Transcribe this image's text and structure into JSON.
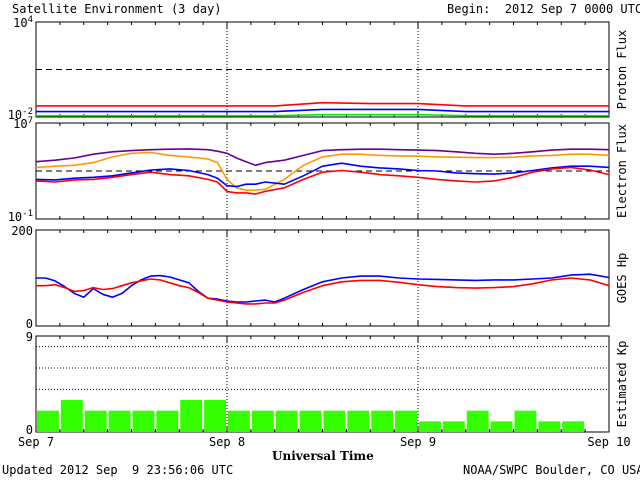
{
  "header": {
    "title": "Satellite Environment (3 day)",
    "begin": "Begin:  2012 Sep 7 0000 UTC"
  },
  "footer": {
    "updated": "Updated 2012 Sep  9 23:56:06 UTC",
    "credit": "NOAA/SWPC Boulder, CO USA"
  },
  "colors": {
    "red": "#ff0000",
    "blue": "#0000ff",
    "green": "#00ee00",
    "purple": "#660099",
    "orange": "#ff9900",
    "bar": "#33ff00"
  },
  "chart_data": [
    {
      "type": "line",
      "ylabel": "Proton Flux",
      "scale": "log",
      "ylim": [
        0.01,
        10000
      ],
      "yticks": [
        {
          "v": 10000,
          "base": "10",
          "exp": "4"
        },
        {
          "v": 0.01,
          "base": "10",
          "exp": "-2"
        }
      ],
      "threshold": 10,
      "x": [
        0,
        0.25,
        0.5,
        0.75,
        1,
        1.25,
        1.5,
        1.75,
        2,
        2.25,
        2.5,
        2.75,
        3
      ],
      "series": [
        {
          "color": "red",
          "values": [
            0.05,
            0.05,
            0.05,
            0.05,
            0.05,
            0.05,
            0.08,
            0.07,
            0.07,
            0.05,
            0.05,
            0.05,
            0.05
          ]
        },
        {
          "color": "blue",
          "values": [
            0.022,
            0.022,
            0.022,
            0.022,
            0.022,
            0.022,
            0.03,
            0.03,
            0.03,
            0.022,
            0.022,
            0.022,
            0.022
          ]
        },
        {
          "color": "green",
          "values": [
            0.012,
            0.012,
            0.012,
            0.012,
            0.012,
            0.012,
            0.014,
            0.014,
            0.014,
            0.012,
            0.012,
            0.012,
            0.012
          ]
        }
      ]
    },
    {
      "type": "line",
      "ylabel": "Electron Flux",
      "scale": "log",
      "ylim": [
        0.1,
        10000000
      ],
      "yticks": [
        {
          "v": 10000000,
          "base": "10",
          "exp": "7"
        },
        {
          "v": 0.1,
          "base": "10",
          "exp": "-1"
        }
      ],
      "threshold": 1000,
      "x": [
        0,
        0.1,
        0.2,
        0.3,
        0.4,
        0.5,
        0.6,
        0.7,
        0.8,
        0.9,
        0.95,
        1.0,
        1.05,
        1.1,
        1.15,
        1.2,
        1.3,
        1.4,
        1.5,
        1.6,
        1.7,
        1.8,
        1.9,
        2.0,
        2.1,
        2.2,
        2.3,
        2.4,
        2.5,
        2.6,
        2.7,
        2.8,
        2.9,
        3.0
      ],
      "series": [
        {
          "color": "purple",
          "values": [
            6000,
            8000,
            12000,
            25000,
            40000,
            50000,
            60000,
            65000,
            70000,
            60000,
            45000,
            30000,
            12000,
            6000,
            3000,
            5000,
            8000,
            20000,
            50000,
            60000,
            65000,
            65000,
            60000,
            55000,
            50000,
            40000,
            30000,
            25000,
            30000,
            40000,
            55000,
            65000,
            65000,
            60000
          ]
        },
        {
          "color": "orange",
          "values": [
            2000,
            2500,
            3000,
            5000,
            15000,
            30000,
            35000,
            20000,
            15000,
            10000,
            5000,
            200,
            40,
            25,
            25,
            30,
            200,
            3000,
            15000,
            25000,
            25000,
            20000,
            18000,
            17000,
            15000,
            14000,
            13000,
            13000,
            14000,
            18000,
            20000,
            25000,
            25000,
            20000
          ]
        },
        {
          "color": "blue",
          "values": [
            200,
            180,
            250,
            300,
            400,
            700,
            1200,
            1500,
            1100,
            500,
            250,
            60,
            50,
            80,
            80,
            120,
            80,
            400,
            2500,
            4500,
            2500,
            1800,
            1500,
            1100,
            1000,
            700,
            600,
            550,
            700,
            1100,
            1800,
            2500,
            2500,
            2000
          ]
        },
        {
          "color": "red",
          "values": [
            150,
            120,
            180,
            200,
            300,
            500,
            800,
            500,
            400,
            200,
            120,
            20,
            15,
            15,
            12,
            20,
            40,
            200,
            800,
            1100,
            800,
            500,
            400,
            300,
            200,
            150,
            120,
            150,
            300,
            800,
            1500,
            2000,
            1200,
            500
          ]
        }
      ]
    },
    {
      "type": "line",
      "ylabel": "GOES Hp",
      "scale": "linear",
      "ylim": [
        0,
        200
      ],
      "yticks": [
        {
          "v": 200,
          "label": "200"
        },
        {
          "v": 0,
          "label": "0"
        }
      ],
      "x": [
        0,
        0.05,
        0.1,
        0.15,
        0.2,
        0.25,
        0.3,
        0.35,
        0.4,
        0.45,
        0.5,
        0.55,
        0.6,
        0.65,
        0.7,
        0.75,
        0.8,
        0.85,
        0.9,
        0.95,
        1.0,
        1.05,
        1.1,
        1.15,
        1.2,
        1.25,
        1.3,
        1.4,
        1.5,
        1.6,
        1.7,
        1.8,
        1.9,
        2.0,
        2.1,
        2.2,
        2.3,
        2.4,
        2.5,
        2.6,
        2.7,
        2.8,
        2.9,
        3.0
      ],
      "series": [
        {
          "color": "blue",
          "values": [
            100,
            100,
            94,
            82,
            68,
            60,
            78,
            66,
            60,
            68,
            84,
            96,
            104,
            105,
            102,
            96,
            90,
            72,
            58,
            56,
            52,
            50,
            50,
            52,
            54,
            50,
            58,
            76,
            92,
            100,
            104,
            104,
            100,
            98,
            97,
            96,
            95,
            96,
            96,
            98,
            100,
            106,
            108,
            101
          ]
        },
        {
          "color": "red",
          "values": [
            84,
            84,
            86,
            80,
            72,
            74,
            80,
            76,
            78,
            84,
            90,
            94,
            98,
            96,
            90,
            84,
            80,
            70,
            58,
            54,
            50,
            48,
            46,
            46,
            48,
            48,
            54,
            70,
            84,
            92,
            95,
            95,
            91,
            86,
            82,
            80,
            79,
            80,
            82,
            88,
            96,
            100,
            96,
            84
          ]
        }
      ]
    },
    {
      "type": "bar",
      "ylabel": "Estimated Kp",
      "scale": "linear",
      "ylim": [
        0,
        9
      ],
      "yticks": [
        {
          "v": 9,
          "label": "9"
        },
        {
          "v": 0,
          "label": "0"
        }
      ],
      "gridlines": [
        4,
        6,
        8,
        9
      ],
      "values": [
        2,
        3,
        2,
        2,
        2,
        2,
        3,
        3,
        2,
        2,
        2,
        2,
        2,
        2,
        2,
        2,
        1,
        1,
        2,
        1,
        2,
        1,
        1,
        0
      ]
    }
  ],
  "xaxis": {
    "label": "Universal Time",
    "ticks": [
      {
        "d": 0,
        "label": "Sep 7"
      },
      {
        "d": 1,
        "label": "Sep 8"
      },
      {
        "d": 2,
        "label": "Sep 9"
      },
      {
        "d": 3,
        "label": "Sep 10"
      }
    ]
  }
}
